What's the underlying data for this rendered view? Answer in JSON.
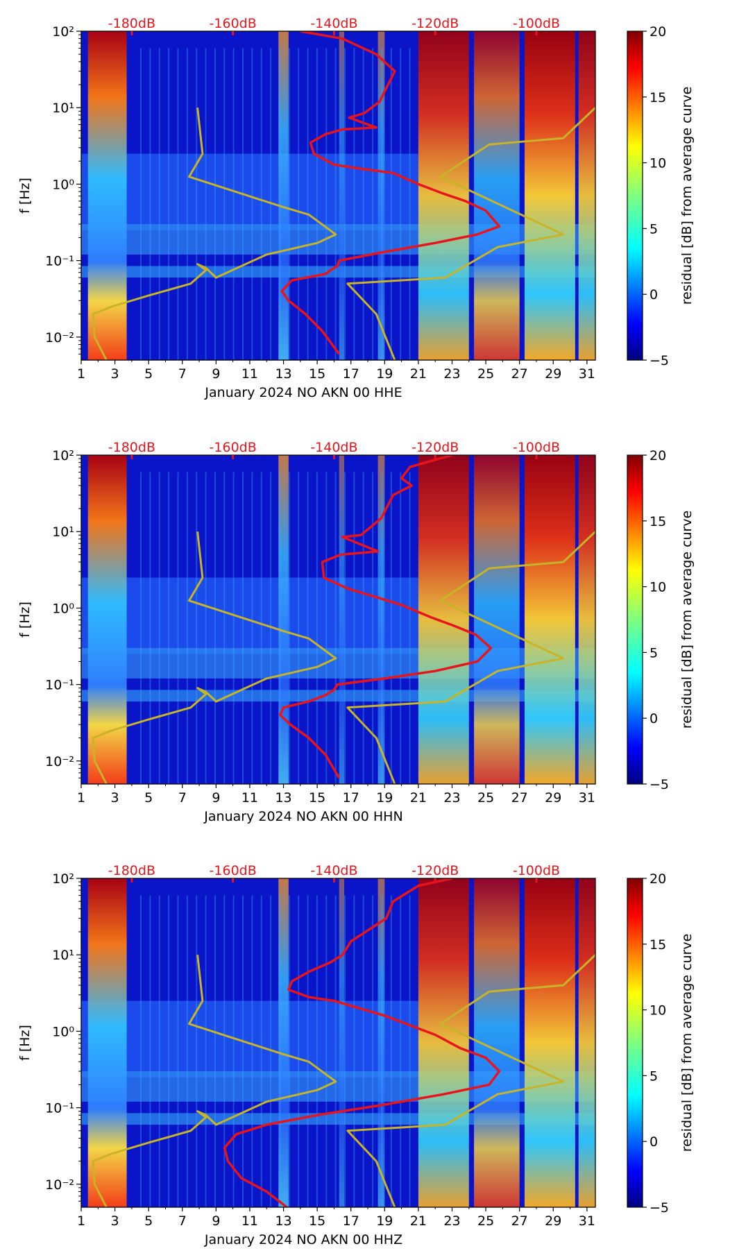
{
  "chart_data": [
    {
      "type": "heatmap",
      "title": "",
      "xlabel": "January 2024 NO AKN 00 HHE",
      "ylabel": "f [Hz]",
      "x_tick_labels": [
        "1",
        "3",
        "5",
        "7",
        "9",
        "11",
        "13",
        "15",
        "17",
        "19",
        "21",
        "23",
        "25",
        "27",
        "29",
        "31"
      ],
      "x_ticks": [
        1,
        3,
        5,
        7,
        9,
        11,
        13,
        15,
        17,
        19,
        21,
        23,
        25,
        27,
        29,
        31
      ],
      "xlim": [
        1,
        31.5
      ],
      "y_tick_labels": [
        "10⁻²",
        "10⁻¹",
        "10⁰",
        "10¹",
        "10²"
      ],
      "y_ticks": [
        0.01,
        0.1,
        1,
        10,
        100
      ],
      "ylim": [
        0.005,
        100
      ],
      "yscale": "log",
      "top_axis_labels": [
        "-180dB",
        "-160dB",
        "-140dB",
        "-120dB",
        "-100dB"
      ],
      "top_axis_positions_day": [
        4,
        10,
        16,
        22,
        28
      ],
      "colorbar": {
        "label": "residual [dB] from average curve",
        "range": [
          -5,
          20
        ],
        "tick_labels": [
          "−5",
          "0",
          "5",
          "10",
          "15",
          "20"
        ],
        "ticks": [
          -5,
          0,
          5,
          10,
          15,
          20
        ]
      },
      "series": [
        {
          "name": "average PSD curve",
          "color": "#e8141c",
          "points": [
            [
              14.0,
              100
            ],
            [
              16.5,
              80
            ],
            [
              18.5,
              50
            ],
            [
              19.6,
              30
            ],
            [
              18.7,
              12
            ],
            [
              17.8,
              8.5
            ],
            [
              16.9,
              7.4
            ],
            [
              18.5,
              5.5
            ],
            [
              16.5,
              5.2
            ],
            [
              15.5,
              4.5
            ],
            [
              14.6,
              3.5
            ],
            [
              14.8,
              2.5
            ],
            [
              16.0,
              1.8
            ],
            [
              17.5,
              1.6
            ],
            [
              19.5,
              1.4
            ],
            [
              21,
              1.0
            ],
            [
              22.5,
              0.75
            ],
            [
              23.8,
              0.6
            ],
            [
              25,
              0.45
            ],
            [
              25.8,
              0.28
            ],
            [
              24.5,
              0.22
            ],
            [
              22,
              0.17
            ],
            [
              19,
              0.13
            ],
            [
              16.3,
              0.1
            ],
            [
              16.2,
              0.085
            ],
            [
              15.8,
              0.075
            ],
            [
              15.5,
              0.067
            ],
            [
              13.5,
              0.055
            ],
            [
              12.9,
              0.04
            ],
            [
              13.3,
              0.03
            ],
            [
              14.3,
              0.02
            ],
            [
              15.3,
              0.012
            ],
            [
              16.3,
              0.006
            ]
          ]
        },
        {
          "name": "noise model low (NLNM)",
          "color": "#c8b428",
          "points": [
            [
              7.9,
              10
            ],
            [
              8.2,
              2.5
            ],
            [
              7.4,
              1.25
            ],
            [
              13,
              0.5
            ],
            [
              14.5,
              0.4
            ],
            [
              16.1,
              0.22
            ],
            [
              15.0,
              0.17
            ],
            [
              12,
              0.12
            ],
            [
              9.0,
              0.06
            ],
            [
              8.4,
              0.08
            ],
            [
              7.9,
              0.09
            ],
            [
              8.4,
              0.075
            ],
            [
              7.5,
              0.05
            ],
            [
              5.0,
              0.035
            ],
            [
              2.8,
              0.025
            ],
            [
              1.7,
              0.02
            ],
            [
              1.8,
              0.01
            ],
            [
              2.5,
              0.005
            ]
          ]
        },
        {
          "name": "noise model high (NHNM)",
          "color": "#c8b428",
          "points": [
            [
              31.5,
              10
            ],
            [
              29.6,
              4.0
            ],
            [
              25.2,
              3.3
            ],
            [
              22.3,
              1.25
            ],
            [
              29.6,
              0.22
            ],
            [
              25.7,
              0.15
            ],
            [
              22.6,
              0.06
            ],
            [
              16.8,
              0.05
            ],
            [
              18.5,
              0.02
            ],
            [
              19.6,
              0.005
            ]
          ]
        }
      ]
    },
    {
      "type": "heatmap",
      "title": "",
      "xlabel": "January 2024 NO AKN 00 HHN",
      "ylabel": "f [Hz]",
      "x_tick_labels": [
        "1",
        "3",
        "5",
        "7",
        "9",
        "11",
        "13",
        "15",
        "17",
        "19",
        "21",
        "23",
        "25",
        "27",
        "29",
        "31"
      ],
      "x_ticks": [
        1,
        3,
        5,
        7,
        9,
        11,
        13,
        15,
        17,
        19,
        21,
        23,
        25,
        27,
        29,
        31
      ],
      "xlim": [
        1,
        31.5
      ],
      "y_tick_labels": [
        "10⁻²",
        "10⁻¹",
        "10⁰",
        "10¹",
        "10²"
      ],
      "y_ticks": [
        0.01,
        0.1,
        1,
        10,
        100
      ],
      "ylim": [
        0.005,
        100
      ],
      "yscale": "log",
      "top_axis_labels": [
        "-180dB",
        "-160dB",
        "-140dB",
        "-120dB",
        "-100dB"
      ],
      "top_axis_positions_day": [
        4,
        10,
        16,
        22,
        28
      ],
      "colorbar": {
        "label": "residual [dB] from average curve",
        "range": [
          -5,
          20
        ],
        "tick_labels": [
          "−5",
          "0",
          "5",
          "10",
          "15",
          "20"
        ],
        "ticks": [
          -5,
          0,
          5,
          10,
          15,
          20
        ]
      },
      "series": [
        {
          "name": "average PSD curve",
          "color": "#e8141c",
          "points": [
            [
              23,
              100
            ],
            [
              20.5,
              70
            ],
            [
              20.0,
              50
            ],
            [
              20.6,
              40
            ],
            [
              19.5,
              30
            ],
            [
              18.8,
              15
            ],
            [
              17.6,
              9
            ],
            [
              16.5,
              8.5
            ],
            [
              18.6,
              5.5
            ],
            [
              16.4,
              5.0
            ],
            [
              15.3,
              4.0
            ],
            [
              15.4,
              2.5
            ],
            [
              16.8,
              1.8
            ],
            [
              18.0,
              1.5
            ],
            [
              20,
              1.1
            ],
            [
              21.8,
              0.75
            ],
            [
              23.0,
              0.6
            ],
            [
              24.4,
              0.45
            ],
            [
              25.3,
              0.3
            ],
            [
              24.5,
              0.2
            ],
            [
              22,
              0.15
            ],
            [
              19,
              0.12
            ],
            [
              16.2,
              0.1
            ],
            [
              16.0,
              0.085
            ],
            [
              15.5,
              0.073
            ],
            [
              14.5,
              0.06
            ],
            [
              13.0,
              0.05
            ],
            [
              12.8,
              0.04
            ],
            [
              13.4,
              0.03
            ],
            [
              14.5,
              0.02
            ],
            [
              15.5,
              0.012
            ],
            [
              16.3,
              0.006
            ]
          ]
        },
        {
          "name": "noise model low (NLNM)",
          "color": "#c8b428",
          "points": [
            [
              7.9,
              10
            ],
            [
              8.2,
              2.5
            ],
            [
              7.4,
              1.25
            ],
            [
              13,
              0.5
            ],
            [
              14.5,
              0.4
            ],
            [
              16.1,
              0.22
            ],
            [
              15.0,
              0.17
            ],
            [
              12,
              0.12
            ],
            [
              9.0,
              0.06
            ],
            [
              8.4,
              0.08
            ],
            [
              7.9,
              0.09
            ],
            [
              8.4,
              0.075
            ],
            [
              7.5,
              0.05
            ],
            [
              5.0,
              0.035
            ],
            [
              2.8,
              0.025
            ],
            [
              1.7,
              0.02
            ],
            [
              1.8,
              0.01
            ],
            [
              2.5,
              0.005
            ]
          ]
        },
        {
          "name": "noise model high (NHNM)",
          "color": "#c8b428",
          "points": [
            [
              31.5,
              10
            ],
            [
              29.6,
              4.0
            ],
            [
              25.2,
              3.3
            ],
            [
              22.3,
              1.25
            ],
            [
              29.6,
              0.22
            ],
            [
              25.7,
              0.15
            ],
            [
              22.6,
              0.06
            ],
            [
              16.8,
              0.05
            ],
            [
              18.5,
              0.02
            ],
            [
              19.6,
              0.005
            ]
          ]
        }
      ]
    },
    {
      "type": "heatmap",
      "title": "",
      "xlabel": "January 2024 NO AKN 00 HHZ",
      "ylabel": "f [Hz]",
      "x_tick_labels": [
        "1",
        "3",
        "5",
        "7",
        "9",
        "11",
        "13",
        "15",
        "17",
        "19",
        "21",
        "23",
        "25",
        "27",
        "29",
        "31"
      ],
      "x_ticks": [
        1,
        3,
        5,
        7,
        9,
        11,
        13,
        15,
        17,
        19,
        21,
        23,
        25,
        27,
        29,
        31
      ],
      "xlim": [
        1,
        31.5
      ],
      "y_tick_labels": [
        "10⁻²",
        "10⁻¹",
        "10⁰",
        "10¹",
        "10²"
      ],
      "y_ticks": [
        0.01,
        0.1,
        1,
        10,
        100
      ],
      "ylim": [
        0.005,
        100
      ],
      "yscale": "log",
      "top_axis_labels": [
        "-180dB",
        "-160dB",
        "-140dB",
        "-120dB",
        "-100dB"
      ],
      "top_axis_positions_day": [
        4,
        10,
        16,
        22,
        28
      ],
      "colorbar": {
        "label": "residual [dB] from average curve",
        "range": [
          -5,
          20
        ],
        "tick_labels": [
          "−5",
          "0",
          "5",
          "10",
          "15",
          "20"
        ],
        "ticks": [
          -5,
          0,
          5,
          10,
          15,
          20
        ]
      },
      "series": [
        {
          "name": "average PSD curve",
          "color": "#e8141c",
          "points": [
            [
              23,
              100
            ],
            [
              21,
              80
            ],
            [
              19.5,
              50
            ],
            [
              19.1,
              30
            ],
            [
              17.0,
              15
            ],
            [
              16.5,
              10
            ],
            [
              15.8,
              8
            ],
            [
              14.5,
              6
            ],
            [
              13.5,
              4.5
            ],
            [
              13.3,
              3.5
            ],
            [
              14.5,
              2.8
            ],
            [
              16,
              2.5
            ],
            [
              17.5,
              2.0
            ],
            [
              19,
              1.6
            ],
            [
              20.5,
              1.2
            ],
            [
              22,
              0.9
            ],
            [
              23.5,
              0.6
            ],
            [
              25,
              0.45
            ],
            [
              25.8,
              0.3
            ],
            [
              25.2,
              0.2
            ],
            [
              22.5,
              0.15
            ],
            [
              19,
              0.11
            ],
            [
              15,
              0.08
            ],
            [
              12,
              0.06
            ],
            [
              10.2,
              0.045
            ],
            [
              9.5,
              0.03
            ],
            [
              9.7,
              0.02
            ],
            [
              10.5,
              0.012
            ],
            [
              12,
              0.008
            ],
            [
              13.2,
              0.005
            ]
          ]
        },
        {
          "name": "noise model low (NLNM)",
          "color": "#c8b428",
          "points": [
            [
              7.9,
              10
            ],
            [
              8.2,
              2.5
            ],
            [
              7.4,
              1.25
            ],
            [
              13,
              0.5
            ],
            [
              14.5,
              0.4
            ],
            [
              16.1,
              0.22
            ],
            [
              15.0,
              0.17
            ],
            [
              12,
              0.12
            ],
            [
              9.0,
              0.06
            ],
            [
              8.4,
              0.08
            ],
            [
              7.9,
              0.09
            ],
            [
              8.4,
              0.075
            ],
            [
              7.5,
              0.05
            ],
            [
              5.0,
              0.035
            ],
            [
              2.8,
              0.025
            ],
            [
              1.7,
              0.02
            ],
            [
              1.8,
              0.01
            ],
            [
              2.5,
              0.005
            ]
          ]
        },
        {
          "name": "noise model high (NHNM)",
          "color": "#c8b428",
          "points": [
            [
              31.5,
              10
            ],
            [
              29.6,
              4.0
            ],
            [
              25.2,
              3.3
            ],
            [
              22.3,
              1.25
            ],
            [
              29.6,
              0.22
            ],
            [
              25.7,
              0.15
            ],
            [
              22.6,
              0.06
            ],
            [
              16.8,
              0.05
            ],
            [
              18.5,
              0.02
            ],
            [
              19.6,
              0.005
            ]
          ]
        }
      ]
    }
  ]
}
